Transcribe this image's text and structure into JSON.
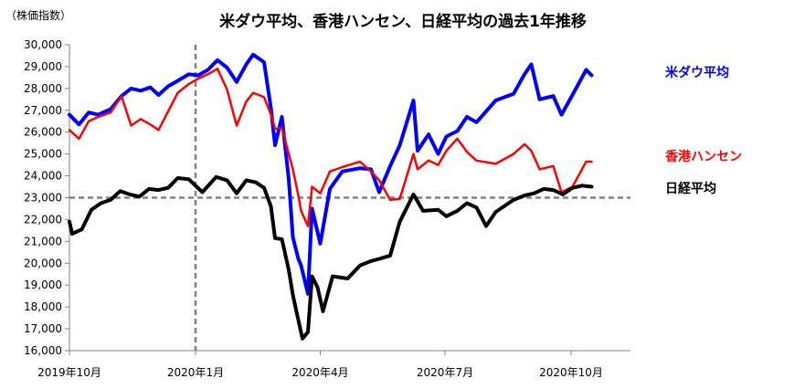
{
  "chart_data": {
    "type": "line",
    "title": "米ダウ平均、香港ハンセン、日経平均の過去1年推移",
    "ylabel": "（株価指数）",
    "xlabel": "",
    "ylim": [
      16000,
      30000
    ],
    "xlim": [
      "2019-10-01",
      "2020-10-31"
    ],
    "grid": false,
    "legend": "right",
    "y_ticks": [
      "16,000",
      "17,000",
      "18,000",
      "19,000",
      "20,000",
      "21,000",
      "22,000",
      "23,000",
      "24,000",
      "25,000",
      "26,000",
      "27,000",
      "28,000",
      "29,000",
      "30,000"
    ],
    "x_ticks": [
      "2019年10月",
      "2020年1月",
      "2020年4月",
      "2020年7月",
      "2020年10月"
    ],
    "reference": {
      "horizontal_y": 23000,
      "vertical_x": "2020-01-01"
    },
    "series": [
      {
        "name": "米ダウ平均",
        "color": "#0000ff",
        "points": [
          [
            "2019-10-01",
            26800
          ],
          [
            "2019-10-08",
            26350
          ],
          [
            "2019-10-15",
            26900
          ],
          [
            "2019-10-22",
            26800
          ],
          [
            "2019-10-31",
            27050
          ],
          [
            "2019-11-08",
            27650
          ],
          [
            "2019-11-15",
            28000
          ],
          [
            "2019-11-22",
            27900
          ],
          [
            "2019-11-29",
            28050
          ],
          [
            "2019-12-05",
            27700
          ],
          [
            "2019-12-12",
            28100
          ],
          [
            "2019-12-19",
            28350
          ],
          [
            "2019-12-27",
            28650
          ],
          [
            "2020-01-03",
            28600
          ],
          [
            "2020-01-10",
            28850
          ],
          [
            "2020-01-17",
            29300
          ],
          [
            "2020-01-24",
            28950
          ],
          [
            "2020-01-31",
            28300
          ],
          [
            "2020-02-07",
            29100
          ],
          [
            "2020-02-12",
            29550
          ],
          [
            "2020-02-20",
            29200
          ],
          [
            "2020-02-25",
            27100
          ],
          [
            "2020-02-28",
            25400
          ],
          [
            "2020-03-04",
            26700
          ],
          [
            "2020-03-09",
            23850
          ],
          [
            "2020-03-12",
            21200
          ],
          [
            "2020-03-16",
            20200
          ],
          [
            "2020-03-18",
            19900
          ],
          [
            "2020-03-23",
            18600
          ],
          [
            "2020-03-26",
            22500
          ],
          [
            "2020-04-01",
            20900
          ],
          [
            "2020-04-08",
            23400
          ],
          [
            "2020-04-17",
            24200
          ],
          [
            "2020-04-30",
            24350
          ],
          [
            "2020-05-08",
            24300
          ],
          [
            "2020-05-14",
            23250
          ],
          [
            "2020-05-22",
            24450
          ],
          [
            "2020-05-29",
            25400
          ],
          [
            "2020-06-08",
            27450
          ],
          [
            "2020-06-11",
            25150
          ],
          [
            "2020-06-19",
            25900
          ],
          [
            "2020-06-26",
            25000
          ],
          [
            "2020-07-02",
            25800
          ],
          [
            "2020-07-10",
            26050
          ],
          [
            "2020-07-17",
            26700
          ],
          [
            "2020-07-24",
            26450
          ],
          [
            "2020-08-07",
            27450
          ],
          [
            "2020-08-20",
            27750
          ],
          [
            "2020-08-28",
            28650
          ],
          [
            "2020-09-02",
            29100
          ],
          [
            "2020-09-08",
            27500
          ],
          [
            "2020-09-18",
            27650
          ],
          [
            "2020-09-24",
            26800
          ],
          [
            "2020-10-02",
            27700
          ],
          [
            "2020-10-12",
            28850
          ],
          [
            "2020-10-16",
            28600
          ]
        ]
      },
      {
        "name": "香港ハンセン",
        "color": "#ff0000",
        "points": [
          [
            "2019-10-01",
            26100
          ],
          [
            "2019-10-08",
            25700
          ],
          [
            "2019-10-15",
            26500
          ],
          [
            "2019-10-22",
            26700
          ],
          [
            "2019-10-31",
            26900
          ],
          [
            "2019-11-08",
            27650
          ],
          [
            "2019-11-15",
            26300
          ],
          [
            "2019-11-22",
            26600
          ],
          [
            "2019-11-29",
            26350
          ],
          [
            "2019-12-05",
            26100
          ],
          [
            "2019-12-12",
            26950
          ],
          [
            "2019-12-19",
            27800
          ],
          [
            "2019-12-27",
            28200
          ],
          [
            "2020-01-03",
            28450
          ],
          [
            "2020-01-10",
            28650
          ],
          [
            "2020-01-17",
            28900
          ],
          [
            "2020-01-24",
            27950
          ],
          [
            "2020-01-31",
            26300
          ],
          [
            "2020-02-07",
            27400
          ],
          [
            "2020-02-12",
            27800
          ],
          [
            "2020-02-20",
            27600
          ],
          [
            "2020-02-25",
            26800
          ],
          [
            "2020-02-28",
            26150
          ],
          [
            "2020-03-04",
            26200
          ],
          [
            "2020-03-09",
            25000
          ],
          [
            "2020-03-12",
            24300
          ],
          [
            "2020-03-16",
            23100
          ],
          [
            "2020-03-18",
            22400
          ],
          [
            "2020-03-23",
            21700
          ],
          [
            "2020-03-26",
            23500
          ],
          [
            "2020-04-01",
            23200
          ],
          [
            "2020-04-08",
            24200
          ],
          [
            "2020-04-17",
            24400
          ],
          [
            "2020-04-30",
            24650
          ],
          [
            "2020-05-08",
            24200
          ],
          [
            "2020-05-14",
            23800
          ],
          [
            "2020-05-22",
            22900
          ],
          [
            "2020-05-29",
            22950
          ],
          [
            "2020-06-08",
            25000
          ],
          [
            "2020-06-11",
            24300
          ],
          [
            "2020-06-19",
            24700
          ],
          [
            "2020-06-26",
            24500
          ],
          [
            "2020-07-02",
            25150
          ],
          [
            "2020-07-10",
            25700
          ],
          [
            "2020-07-17",
            25100
          ],
          [
            "2020-07-24",
            24700
          ],
          [
            "2020-08-07",
            24550
          ],
          [
            "2020-08-20",
            25000
          ],
          [
            "2020-08-28",
            25450
          ],
          [
            "2020-09-02",
            25150
          ],
          [
            "2020-09-08",
            24300
          ],
          [
            "2020-09-18",
            24450
          ],
          [
            "2020-09-24",
            23250
          ],
          [
            "2020-10-02",
            23500
          ],
          [
            "2020-10-12",
            24650
          ],
          [
            "2020-10-16",
            24650
          ]
        ]
      },
      {
        "name": "日経平均",
        "color": "#000000",
        "points": [
          [
            "2019-10-01",
            21900
          ],
          [
            "2019-10-03",
            21350
          ],
          [
            "2019-10-10",
            21550
          ],
          [
            "2019-10-17",
            22450
          ],
          [
            "2019-10-24",
            22750
          ],
          [
            "2019-10-31",
            22900
          ],
          [
            "2019-11-07",
            23300
          ],
          [
            "2019-11-14",
            23150
          ],
          [
            "2019-11-21",
            23050
          ],
          [
            "2019-11-28",
            23400
          ],
          [
            "2019-12-05",
            23350
          ],
          [
            "2019-12-12",
            23450
          ],
          [
            "2019-12-19",
            23900
          ],
          [
            "2019-12-27",
            23850
          ],
          [
            "2020-01-06",
            23250
          ],
          [
            "2020-01-16",
            23950
          ],
          [
            "2020-01-24",
            23800
          ],
          [
            "2020-01-31",
            23200
          ],
          [
            "2020-02-07",
            23800
          ],
          [
            "2020-02-14",
            23700
          ],
          [
            "2020-02-20",
            23450
          ],
          [
            "2020-02-25",
            22600
          ],
          [
            "2020-02-28",
            21150
          ],
          [
            "2020-03-04",
            21100
          ],
          [
            "2020-03-09",
            19700
          ],
          [
            "2020-03-12",
            18550
          ],
          [
            "2020-03-16",
            17400
          ],
          [
            "2020-03-19",
            16550
          ],
          [
            "2020-03-23",
            16850
          ],
          [
            "2020-03-26",
            19400
          ],
          [
            "2020-03-30",
            18900
          ],
          [
            "2020-04-03",
            17800
          ],
          [
            "2020-04-10",
            19400
          ],
          [
            "2020-04-21",
            19300
          ],
          [
            "2020-04-30",
            19900
          ],
          [
            "2020-05-08",
            20100
          ],
          [
            "2020-05-14",
            20200
          ],
          [
            "2020-05-22",
            20350
          ],
          [
            "2020-05-29",
            21900
          ],
          [
            "2020-06-08",
            23150
          ],
          [
            "2020-06-15",
            22400
          ],
          [
            "2020-06-26",
            22450
          ],
          [
            "2020-07-02",
            22150
          ],
          [
            "2020-07-10",
            22400
          ],
          [
            "2020-07-17",
            22750
          ],
          [
            "2020-07-24",
            22550
          ],
          [
            "2020-07-31",
            21700
          ],
          [
            "2020-08-07",
            22350
          ],
          [
            "2020-08-20",
            22900
          ],
          [
            "2020-08-28",
            23100
          ],
          [
            "2020-09-04",
            23200
          ],
          [
            "2020-09-11",
            23400
          ],
          [
            "2020-09-18",
            23350
          ],
          [
            "2020-09-25",
            23150
          ],
          [
            "2020-10-02",
            23450
          ],
          [
            "2020-10-09",
            23550
          ],
          [
            "2020-10-16",
            23500
          ]
        ]
      }
    ]
  }
}
